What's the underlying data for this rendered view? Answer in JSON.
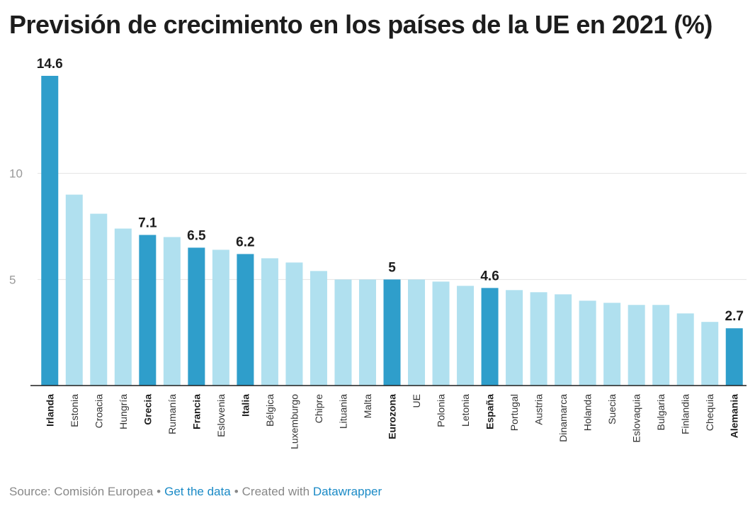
{
  "title": "Previsión de crecimiento en los países de la UE en 2021 (%)",
  "footer": {
    "source": "Source: Comisión Europea",
    "separator": "•",
    "get_data_link": "Get the data",
    "created_with": "Created with",
    "tool_link": "Datawrapper"
  },
  "colors": {
    "highlight": "#2f9ecb",
    "normal": "#b0e0ef",
    "grid": "#e2e2e2",
    "axis": "#1d1d1d"
  },
  "chart_data": {
    "type": "bar",
    "title": "Previsión de crecimiento en los países de la UE en 2021 (%)",
    "xlabel": "",
    "ylabel": "",
    "ylim": [
      0,
      14.6
    ],
    "yticks": [
      5,
      10
    ],
    "grid": true,
    "categories": [
      "Irlanda",
      "Estonia",
      "Croacia",
      "Hungría",
      "Grecia",
      "Rumanía",
      "Francia",
      "Eslovenia",
      "Italia",
      "Bélgica",
      "Luxemburgo",
      "Chipre",
      "Lituania",
      "Malta",
      "Eurozona",
      "UE",
      "Polonia",
      "Letonia",
      "España",
      "Portugal",
      "Austria",
      "Dinamarca",
      "Holanda",
      "Suecia",
      "Eslovaquia",
      "Bulgaria",
      "Finlandia",
      "Chequia",
      "Alemania"
    ],
    "values": [
      14.6,
      9.0,
      8.1,
      7.4,
      7.1,
      7.0,
      6.5,
      6.4,
      6.2,
      6.0,
      5.8,
      5.4,
      5.0,
      5.0,
      5.0,
      5.0,
      4.9,
      4.7,
      4.6,
      4.5,
      4.4,
      4.3,
      4.0,
      3.9,
      3.8,
      3.8,
      3.4,
      3.0,
      2.7
    ],
    "highlighted": [
      "Irlanda",
      "Grecia",
      "Francia",
      "Italia",
      "Eurozona",
      "España",
      "Alemania"
    ],
    "data_labels": [
      {
        "category": "Irlanda",
        "text": "14.6"
      },
      {
        "category": "Grecia",
        "text": "7.1"
      },
      {
        "category": "Francia",
        "text": "6.5"
      },
      {
        "category": "Italia",
        "text": "6.2"
      },
      {
        "category": "Eurozona",
        "text": "5"
      },
      {
        "category": "España",
        "text": "4.6"
      },
      {
        "category": "Alemania",
        "text": "2.7"
      }
    ]
  }
}
